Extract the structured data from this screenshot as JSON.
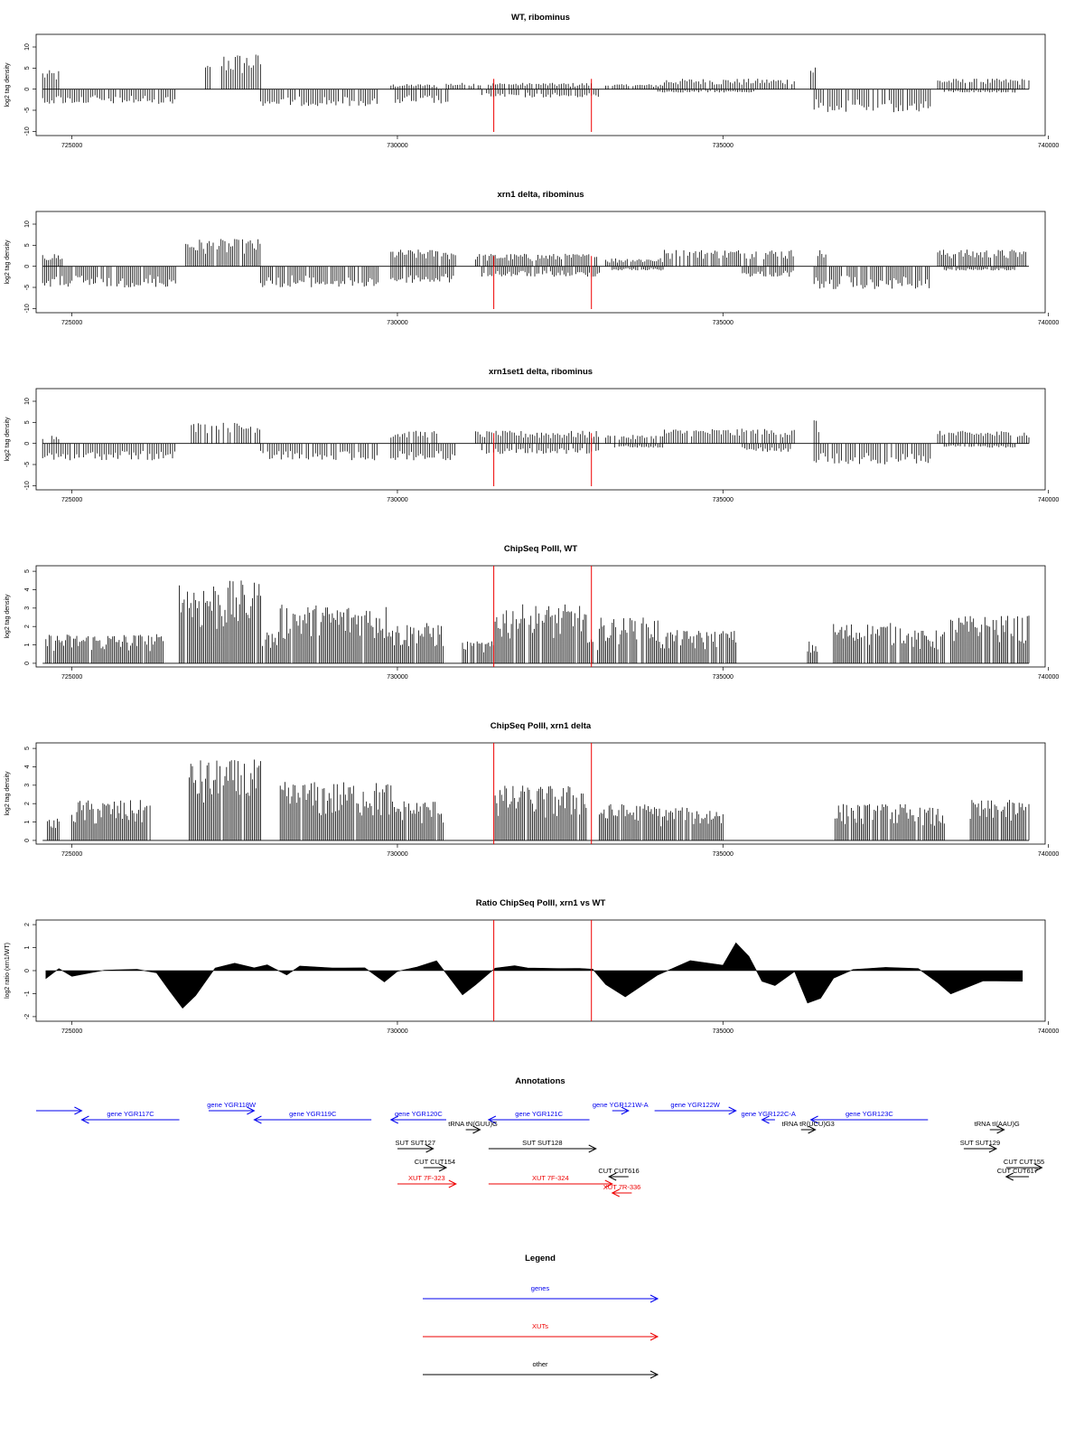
{
  "chart_data": [
    {
      "type": "bar",
      "title": "WT, ribominus",
      "ylabel": "log2 tag density",
      "xlim": [
        724450,
        739950
      ],
      "ylim": [
        -11,
        13
      ],
      "x_ticks": [
        "725000",
        "730000",
        "735000",
        "740000"
      ],
      "y_ticks": [
        "-10",
        "-5",
        "0",
        "5",
        "10"
      ],
      "signal": {
        "step": 35,
        "plus": [
          [
            724550,
            724800,
            4.5
          ],
          [
            727050,
            727150,
            6
          ],
          [
            727300,
            727900,
            8.5
          ],
          [
            729900,
            730600,
            1.2
          ],
          [
            730750,
            731300,
            1.5
          ],
          [
            731400,
            733000,
            1.5
          ],
          [
            733200,
            734100,
            1.2
          ],
          [
            734100,
            736100,
            2.5
          ],
          [
            736350,
            736450,
            6
          ],
          [
            738300,
            739700,
            2.5
          ]
        ],
        "minus": [
          [
            724550,
            726600,
            3.5
          ],
          [
            727900,
            729700,
            4
          ],
          [
            729900,
            730800,
            3.5
          ],
          [
            731300,
            733100,
            2
          ],
          [
            734000,
            735500,
            0.8
          ],
          [
            736400,
            738200,
            5.5
          ],
          [
            738400,
            739500,
            0.8
          ]
        ]
      },
      "markers": [
        731480,
        732980
      ]
    },
    {
      "type": "bar",
      "title": "xrn1 delta, ribominus",
      "ylabel": "log2 tag density",
      "xlim": [
        724450,
        739950
      ],
      "ylim": [
        -11,
        13
      ],
      "x_ticks": [
        "725000",
        "730000",
        "735000",
        "740000"
      ],
      "y_ticks": [
        "-10",
        "-5",
        "0",
        "5",
        "10"
      ],
      "signal": {
        "step": 30,
        "plus": [
          [
            724550,
            724850,
            3
          ],
          [
            726750,
            727900,
            6.5
          ],
          [
            729900,
            730900,
            4
          ],
          [
            731200,
            733100,
            3
          ],
          [
            733200,
            734100,
            2
          ],
          [
            734100,
            736100,
            4
          ],
          [
            736400,
            736600,
            4
          ],
          [
            738300,
            739700,
            4
          ]
        ],
        "minus": [
          [
            724550,
            726600,
            5
          ],
          [
            727900,
            729700,
            5
          ],
          [
            729900,
            730900,
            4
          ],
          [
            731300,
            733100,
            2.5
          ],
          [
            733300,
            734100,
            1
          ],
          [
            735300,
            736100,
            2.5
          ],
          [
            736400,
            738200,
            5.5
          ],
          [
            738400,
            739500,
            1
          ]
        ]
      },
      "markers": [
        731480,
        732980
      ]
    },
    {
      "type": "bar",
      "title": "xrn1set1 delta, ribominus",
      "ylabel": "log2 tag density",
      "xlim": [
        724450,
        739950
      ],
      "ylim": [
        -11,
        13
      ],
      "x_ticks": [
        "725000",
        "730000",
        "735000",
        "740000"
      ],
      "y_ticks": [
        "-10",
        "-5",
        "0",
        "5",
        "10"
      ],
      "signal": {
        "step": 35,
        "plus": [
          [
            724550,
            724850,
            2
          ],
          [
            726800,
            727900,
            5
          ],
          [
            729900,
            730600,
            3
          ],
          [
            731200,
            733100,
            3
          ],
          [
            733200,
            734100,
            2
          ],
          [
            734100,
            736100,
            3.5
          ],
          [
            736400,
            736500,
            6
          ],
          [
            738300,
            739700,
            3
          ]
        ],
        "minus": [
          [
            724550,
            726600,
            4
          ],
          [
            727900,
            729700,
            4
          ],
          [
            729900,
            730900,
            4
          ],
          [
            731300,
            733100,
            2.5
          ],
          [
            733300,
            734100,
            1
          ],
          [
            735300,
            736100,
            2
          ],
          [
            736400,
            738200,
            5
          ],
          [
            738400,
            739500,
            1
          ]
        ]
      },
      "markers": [
        731480,
        732980
      ]
    },
    {
      "type": "bar",
      "title": "ChipSeq PolII, WT",
      "ylabel": "log2 tag density",
      "xlim": [
        724450,
        739950
      ],
      "ylim": [
        -0.2,
        5.3
      ],
      "x_ticks": [
        "725000",
        "730000",
        "735000",
        "740000"
      ],
      "y_ticks": [
        "0",
        "1",
        "2",
        "3",
        "4",
        "5"
      ],
      "signal": {
        "step": 25,
        "plus": [
          [
            724600,
            726400,
            1.6
          ],
          [
            726600,
            727900,
            4.5
          ],
          [
            727900,
            728200,
            1.8
          ],
          [
            728200,
            729900,
            3.2
          ],
          [
            729900,
            730700,
            2.2
          ],
          [
            731000,
            731500,
            1.2
          ],
          [
            731500,
            732900,
            3.2
          ],
          [
            732900,
            733100,
            1.3
          ],
          [
            733100,
            734000,
            2.5
          ],
          [
            734000,
            735200,
            1.8
          ],
          [
            736300,
            736450,
            1.2
          ],
          [
            736700,
            737800,
            2.2
          ],
          [
            737800,
            738400,
            1.8
          ],
          [
            738500,
            739700,
            2.6
          ]
        ],
        "minus": []
      },
      "markers": [
        731480,
        732980
      ]
    },
    {
      "type": "bar",
      "title": "ChipSeq PolII, xrn1 delta",
      "ylabel": "log2 tag density",
      "xlim": [
        724450,
        739950
      ],
      "ylim": [
        -0.2,
        5.3
      ],
      "x_ticks": [
        "725000",
        "730000",
        "735000",
        "740000"
      ],
      "y_ticks": [
        "0",
        "1",
        "2",
        "3",
        "4",
        "5"
      ],
      "signal": {
        "step": 25,
        "plus": [
          [
            724600,
            724800,
            1.2
          ],
          [
            725000,
            726200,
            2.2
          ],
          [
            726800,
            727900,
            4.4
          ],
          [
            728200,
            729900,
            3.2
          ],
          [
            729900,
            730700,
            2.2
          ],
          [
            731500,
            732900,
            3
          ],
          [
            733100,
            734000,
            2
          ],
          [
            734000,
            735000,
            1.8
          ],
          [
            736700,
            737800,
            2
          ],
          [
            737800,
            738400,
            1.8
          ],
          [
            738800,
            739700,
            2.2
          ]
        ],
        "minus": []
      },
      "markers": [
        731480,
        732980
      ]
    },
    {
      "type": "area",
      "title": "Ratio ChipSeq PolII, xrn1 vs WT",
      "ylabel": "log2 ratio (xrn1/WT)",
      "xlim": [
        724450,
        739950
      ],
      "ylim": [
        -2.2,
        2.2
      ],
      "x_ticks": [
        "725000",
        "730000",
        "735000",
        "740000"
      ],
      "y_ticks": [
        "-2",
        "-1",
        "0",
        "1",
        "2"
      ],
      "x": [
        724600,
        724800,
        725000,
        725500,
        726000,
        726300,
        726500,
        726700,
        726900,
        727200,
        727500,
        727800,
        728000,
        728300,
        728500,
        729000,
        729500,
        729800,
        730000,
        730300,
        730600,
        730800,
        731000,
        731200,
        731500,
        731800,
        732000,
        732500,
        732800,
        733000,
        733200,
        733500,
        734000,
        734500,
        735000,
        735200,
        735400,
        735600,
        735800,
        736000,
        736100,
        736300,
        736500,
        736700,
        737000,
        737500,
        738000,
        738300,
        738500,
        739000,
        739600
      ],
      "values": [
        -0.3,
        0.1,
        -0.2,
        0,
        0,
        -0.1,
        -0.9,
        -1.6,
        -1.1,
        0.1,
        0.3,
        0.1,
        0.2,
        -0.2,
        0.2,
        0.1,
        0.1,
        -0.5,
        0,
        0.2,
        0.4,
        -0.3,
        -1.1,
        -0.6,
        0.1,
        0.2,
        0.1,
        0.1,
        0.1,
        0.1,
        -0.6,
        -1.1,
        -0.2,
        0.4,
        0.2,
        1.2,
        0.6,
        -0.4,
        -0.6,
        -0.3,
        0,
        -1.4,
        -1.2,
        -0.3,
        0.1,
        0.2,
        0.1,
        -0.5,
        -1,
        -0.5,
        -0.4
      ]
    }
  ],
  "markers": [
    731480,
    732980
  ],
  "annotations": {
    "title": "Annotations",
    "xlim": [
      724450,
      739950
    ],
    "colors": {
      "gene": "#0000ee",
      "xut": "#ee0000",
      "other": "#000000"
    },
    "features": [
      {
        "label": "",
        "kind": "gene",
        "start": 724450,
        "end": 725150,
        "strand": "+",
        "row": 0
      },
      {
        "label": "gene YGR117C",
        "kind": "gene",
        "start": 725150,
        "end": 726650,
        "strand": "-",
        "row": 1
      },
      {
        "label": "gene YGR118W",
        "kind": "gene",
        "start": 727100,
        "end": 727800,
        "strand": "+",
        "row": 0
      },
      {
        "label": "gene YGR119C",
        "kind": "gene",
        "start": 727800,
        "end": 729600,
        "strand": "-",
        "row": 1
      },
      {
        "label": "gene YGR120C",
        "kind": "gene",
        "start": 729900,
        "end": 730750,
        "strand": "-",
        "row": 1
      },
      {
        "label": "gene YGR121C",
        "kind": "gene",
        "start": 731400,
        "end": 732950,
        "strand": "-",
        "row": 1
      },
      {
        "label": "gene YGR121W-A",
        "kind": "gene",
        "start": 733300,
        "end": 733550,
        "strand": "+",
        "row": 0
      },
      {
        "label": "gene YGR122W",
        "kind": "gene",
        "start": 733950,
        "end": 735200,
        "strand": "+",
        "row": 0
      },
      {
        "label": "gene YGR122C-A",
        "kind": "gene",
        "start": 735600,
        "end": 735800,
        "strand": "-",
        "row": 1
      },
      {
        "label": "gene YGR123C",
        "kind": "gene",
        "start": 736350,
        "end": 738150,
        "strand": "-",
        "row": 1
      },
      {
        "label": "tRNA tN(GUU)G",
        "kind": "other",
        "start": 731050,
        "end": 731270,
        "strand": "+",
        "row": 2
      },
      {
        "label": "tRNA tR(UCU)G3",
        "kind": "other",
        "start": 736200,
        "end": 736420,
        "strand": "+",
        "row": 2
      },
      {
        "label": "tRNA tI(AAU)G",
        "kind": "other",
        "start": 739100,
        "end": 739320,
        "strand": "+",
        "row": 2
      },
      {
        "label": "SUT SUT127",
        "kind": "other",
        "start": 730000,
        "end": 730550,
        "strand": "+",
        "row": 3
      },
      {
        "label": "SUT SUT128",
        "kind": "other",
        "start": 731400,
        "end": 733050,
        "strand": "+",
        "row": 3
      },
      {
        "label": "SUT SUT129",
        "kind": "other",
        "start": 738700,
        "end": 739200,
        "strand": "+",
        "row": 3
      },
      {
        "label": "CUT CUT154",
        "kind": "other",
        "start": 730400,
        "end": 730750,
        "strand": "+",
        "row": 4
      },
      {
        "label": "CUT CUT616",
        "kind": "other",
        "start": 733250,
        "end": 733550,
        "strand": "-",
        "row": 5
      },
      {
        "label": "CUT CUT155",
        "kind": "other",
        "start": 739350,
        "end": 739900,
        "strand": "+",
        "row": 4
      },
      {
        "label": "CUT CUT617",
        "kind": "other",
        "start": 739350,
        "end": 739700,
        "strand": "-",
        "row": 5
      },
      {
        "label": "XUT 7F-323",
        "kind": "xut",
        "start": 730000,
        "end": 730900,
        "strand": "+",
        "row": 6
      },
      {
        "label": "XUT 7F-324",
        "kind": "xut",
        "start": 731400,
        "end": 733300,
        "strand": "+",
        "row": 6
      },
      {
        "label": "XUT 7R-336",
        "kind": "xut",
        "start": 733300,
        "end": 733600,
        "strand": "-",
        "row": 7
      }
    ]
  },
  "legend": {
    "title": "Legend",
    "items": [
      {
        "label": "genes",
        "color": "#0000ee"
      },
      {
        "label": "XUTs",
        "color": "#ee0000"
      },
      {
        "label": "other",
        "color": "#000000"
      }
    ]
  }
}
